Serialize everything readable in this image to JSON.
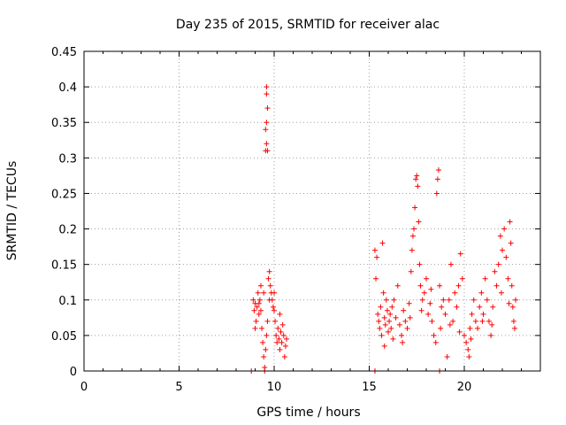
{
  "chart_data": {
    "type": "scatter",
    "title": "Day 235 of 2015, SRMTID for receiver alac",
    "xlabel": "GPS time / hours",
    "ylabel": "SRMTID / TECUs",
    "xlim": [
      0,
      24
    ],
    "ylim": [
      0,
      0.45
    ],
    "grid": true,
    "marker": "+",
    "color": "#ff0000",
    "x_ticks": [
      0,
      5,
      10,
      15,
      20
    ],
    "x_tick_labels": [
      "0",
      "5",
      "10",
      "15",
      "20"
    ],
    "y_ticks": [
      0,
      0.05,
      0.1,
      0.15,
      0.2,
      0.25,
      0.3,
      0.35,
      0.4,
      0.45
    ],
    "y_tick_labels": [
      "0",
      "0.05",
      "0.1",
      "0.15",
      "0.2",
      "0.25",
      "0.3",
      "0.35",
      "0.4",
      "0.45"
    ],
    "series": [
      {
        "name": "SRMTID",
        "points": [
          [
            8.8,
            0.0
          ],
          [
            9.5,
            0.0
          ],
          [
            15.3,
            0.0
          ],
          [
            18.7,
            0.0
          ],
          [
            9.6,
            0.4
          ],
          [
            9.6,
            0.39
          ],
          [
            9.65,
            0.37
          ],
          [
            9.6,
            0.35
          ],
          [
            9.55,
            0.34
          ],
          [
            9.6,
            0.32
          ],
          [
            9.55,
            0.31
          ],
          [
            9.65,
            0.31
          ],
          [
            8.9,
            0.1
          ],
          [
            8.95,
            0.085
          ],
          [
            9.0,
            0.095
          ],
          [
            9.05,
            0.07
          ],
          [
            9.1,
            0.09
          ],
          [
            9.15,
            0.11
          ],
          [
            9.2,
            0.08
          ],
          [
            9.25,
            0.1
          ],
          [
            9.3,
            0.12
          ],
          [
            9.35,
            0.06
          ],
          [
            9.4,
            0.04
          ],
          [
            9.45,
            0.02
          ],
          [
            9.5,
            0.005
          ],
          [
            9.55,
            0.03
          ],
          [
            9.6,
            0.05
          ],
          [
            9.65,
            0.07
          ],
          [
            9.7,
            0.13
          ],
          [
            9.75,
            0.14
          ],
          [
            9.8,
            0.12
          ],
          [
            9.85,
            0.11
          ],
          [
            9.9,
            0.1
          ],
          [
            9.95,
            0.09
          ],
          [
            10.0,
            0.085
          ],
          [
            10.05,
            0.07
          ],
          [
            10.1,
            0.05
          ],
          [
            10.15,
            0.04
          ],
          [
            10.2,
            0.06
          ],
          [
            10.25,
            0.045
          ],
          [
            10.3,
            0.03
          ],
          [
            10.35,
            0.055
          ],
          [
            10.4,
            0.04
          ],
          [
            10.45,
            0.065
          ],
          [
            10.5,
            0.05
          ],
          [
            10.55,
            0.02
          ],
          [
            10.6,
            0.035
          ],
          [
            10.65,
            0.045
          ],
          [
            9.3,
            0.085
          ],
          [
            9.0,
            0.06
          ],
          [
            9.2,
            0.095
          ],
          [
            9.45,
            0.11
          ],
          [
            9.75,
            0.1
          ],
          [
            10.0,
            0.11
          ],
          [
            10.3,
            0.08
          ],
          [
            15.3,
            0.17
          ],
          [
            15.35,
            0.13
          ],
          [
            15.4,
            0.16
          ],
          [
            15.45,
            0.08
          ],
          [
            15.5,
            0.07
          ],
          [
            15.55,
            0.06
          ],
          [
            15.6,
            0.09
          ],
          [
            15.65,
            0.05
          ],
          [
            15.7,
            0.18
          ],
          [
            15.75,
            0.11
          ],
          [
            15.8,
            0.075
          ],
          [
            15.85,
            0.065
          ],
          [
            15.9,
            0.1
          ],
          [
            15.95,
            0.085
          ],
          [
            16.0,
            0.055
          ],
          [
            16.05,
            0.07
          ],
          [
            16.1,
            0.08
          ],
          [
            16.15,
            0.06
          ],
          [
            16.2,
            0.09
          ],
          [
            16.3,
            0.1
          ],
          [
            16.4,
            0.075
          ],
          [
            16.5,
            0.12
          ],
          [
            16.6,
            0.065
          ],
          [
            16.7,
            0.05
          ],
          [
            16.8,
            0.085
          ],
          [
            16.9,
            0.07
          ],
          [
            17.0,
            0.06
          ],
          [
            17.1,
            0.095
          ],
          [
            17.2,
            0.14
          ],
          [
            17.25,
            0.17
          ],
          [
            17.3,
            0.19
          ],
          [
            17.35,
            0.2
          ],
          [
            17.4,
            0.23
          ],
          [
            17.45,
            0.27
          ],
          [
            17.5,
            0.275
          ],
          [
            17.55,
            0.26
          ],
          [
            17.6,
            0.21
          ],
          [
            17.65,
            0.15
          ],
          [
            17.7,
            0.12
          ],
          [
            17.8,
            0.1
          ],
          [
            17.9,
            0.11
          ],
          [
            18.0,
            0.13
          ],
          [
            18.1,
            0.08
          ],
          [
            18.2,
            0.095
          ],
          [
            18.3,
            0.07
          ],
          [
            18.4,
            0.05
          ],
          [
            18.5,
            0.04
          ],
          [
            18.55,
            0.25
          ],
          [
            18.6,
            0.27
          ],
          [
            18.65,
            0.283
          ],
          [
            18.7,
            0.12
          ],
          [
            18.8,
            0.09
          ],
          [
            18.9,
            0.1
          ],
          [
            19.0,
            0.08
          ],
          [
            19.1,
            0.02
          ],
          [
            19.2,
            0.1
          ],
          [
            19.3,
            0.15
          ],
          [
            19.4,
            0.07
          ],
          [
            19.5,
            0.11
          ],
          [
            19.6,
            0.09
          ],
          [
            19.7,
            0.12
          ],
          [
            19.8,
            0.165
          ],
          [
            19.9,
            0.13
          ],
          [
            20.0,
            0.05
          ],
          [
            20.1,
            0.04
          ],
          [
            20.2,
            0.03
          ],
          [
            20.25,
            0.02
          ],
          [
            20.3,
            0.06
          ],
          [
            20.4,
            0.08
          ],
          [
            20.5,
            0.1
          ],
          [
            20.6,
            0.07
          ],
          [
            20.7,
            0.06
          ],
          [
            20.8,
            0.09
          ],
          [
            20.9,
            0.11
          ],
          [
            21.0,
            0.08
          ],
          [
            21.1,
            0.13
          ],
          [
            21.2,
            0.1
          ],
          [
            21.3,
            0.07
          ],
          [
            21.4,
            0.05
          ],
          [
            21.5,
            0.09
          ],
          [
            21.6,
            0.14
          ],
          [
            21.7,
            0.12
          ],
          [
            21.8,
            0.15
          ],
          [
            21.9,
            0.19
          ],
          [
            22.0,
            0.17
          ],
          [
            22.1,
            0.2
          ],
          [
            22.2,
            0.16
          ],
          [
            22.3,
            0.13
          ],
          [
            22.4,
            0.21
          ],
          [
            22.45,
            0.18
          ],
          [
            22.5,
            0.12
          ],
          [
            22.55,
            0.09
          ],
          [
            22.6,
            0.07
          ],
          [
            22.65,
            0.06
          ],
          [
            22.7,
            0.1
          ],
          [
            15.8,
            0.035
          ],
          [
            16.25,
            0.045
          ],
          [
            16.75,
            0.04
          ],
          [
            17.15,
            0.075
          ],
          [
            17.75,
            0.085
          ],
          [
            18.25,
            0.115
          ],
          [
            18.75,
            0.06
          ],
          [
            19.25,
            0.065
          ],
          [
            19.75,
            0.055
          ],
          [
            20.35,
            0.045
          ],
          [
            20.95,
            0.07
          ],
          [
            21.45,
            0.065
          ],
          [
            21.95,
            0.11
          ],
          [
            22.35,
            0.095
          ]
        ]
      }
    ]
  }
}
